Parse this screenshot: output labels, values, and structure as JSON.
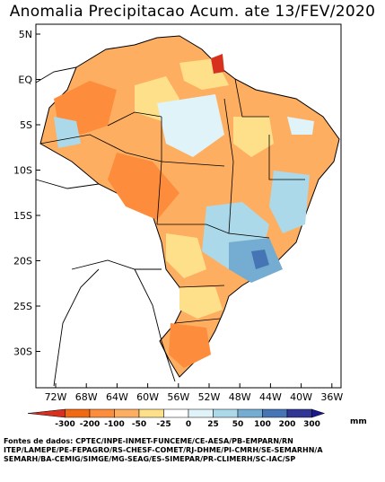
{
  "title": "Anomalia Precipitacao Acum. ate 13/FEV/2020",
  "lat_labels": [
    "5N",
    "EQ",
    "5S",
    "10S",
    "15S",
    "20S",
    "25S",
    "30S"
  ],
  "lon_labels": [
    "72W",
    "68W",
    "64W",
    "60W",
    "56W",
    "52W",
    "48W",
    "44W",
    "40W",
    "36W"
  ],
  "legend": {
    "labels": [
      "-300",
      "-200",
      "-100",
      "-50",
      "-25",
      "0",
      "25",
      "50",
      "100",
      "200",
      "300"
    ],
    "unit": "mm",
    "colors": [
      "#d7301f",
      "#f16913",
      "#fd8d3c",
      "#fdae61",
      "#fee08b",
      "#ffffff",
      "#e0f3f8",
      "#abd9e9",
      "#74add1",
      "#4575b4",
      "#313695",
      "#1a1a8c"
    ]
  },
  "sources": {
    "line1": "Fontes de dados: CPTEC/INPE-INMET-FUNCEME/CE-AESA/PB-EMPARN/RN",
    "line2": "ITEP/LAMEPE/PE-FEPAGRO/RS-CHESF-COMET/RJ-DHME/PI-CMRH/SE-SEMARHN/A",
    "line3": "SEMARH/BA-CEMIG/SIMGE/MG-SEAG/ES-SIMEPAR/PR-CLIMERH/SC-IAC/SP"
  }
}
